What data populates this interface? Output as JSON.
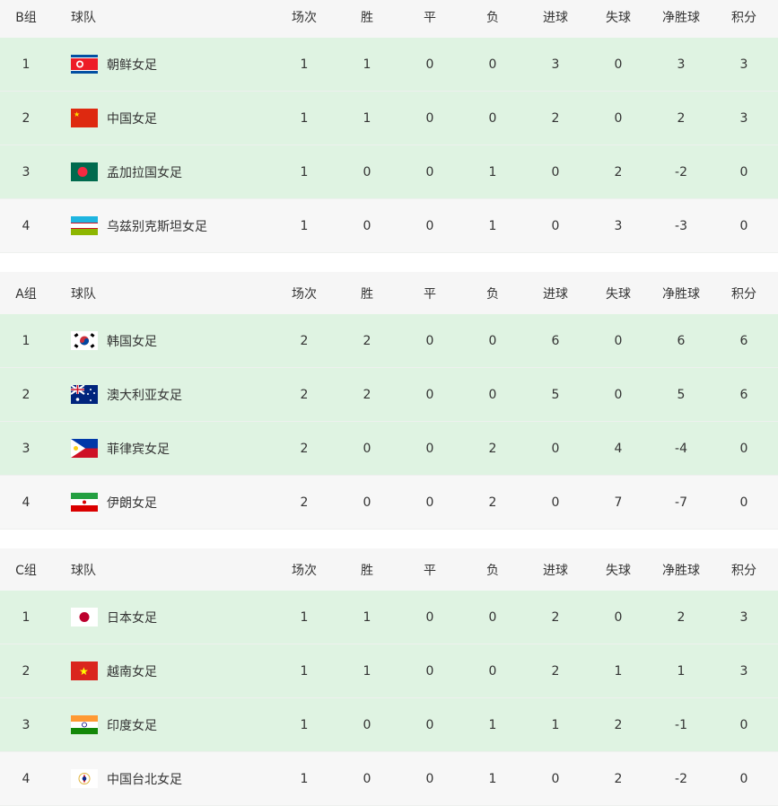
{
  "columns": {
    "team": "球队",
    "played": "场次",
    "won": "胜",
    "drawn": "平",
    "lost": "负",
    "gf": "进球",
    "ga": "失球",
    "gd": "净胜球",
    "pts": "积分"
  },
  "colors": {
    "top_row": "#dff3e2",
    "other_row": "#f7f7f7",
    "header": "#f6f6f6"
  },
  "groups": [
    {
      "label": "B组",
      "rows": [
        {
          "rank": "1",
          "flag": "north-korea",
          "team": "朝鲜女足",
          "played": "1",
          "won": "1",
          "drawn": "0",
          "lost": "0",
          "gf": "3",
          "ga": "0",
          "gd": "3",
          "pts": "3"
        },
        {
          "rank": "2",
          "flag": "china",
          "team": "中国女足",
          "played": "1",
          "won": "1",
          "drawn": "0",
          "lost": "0",
          "gf": "2",
          "ga": "0",
          "gd": "2",
          "pts": "3"
        },
        {
          "rank": "3",
          "flag": "bangladesh",
          "team": "孟加拉国女足",
          "played": "1",
          "won": "0",
          "drawn": "0",
          "lost": "1",
          "gf": "0",
          "ga": "2",
          "gd": "-2",
          "pts": "0"
        },
        {
          "rank": "4",
          "flag": "uzbekistan",
          "team": "乌兹别克斯坦女足",
          "played": "1",
          "won": "0",
          "drawn": "0",
          "lost": "1",
          "gf": "0",
          "ga": "3",
          "gd": "-3",
          "pts": "0"
        }
      ]
    },
    {
      "label": "A组",
      "rows": [
        {
          "rank": "1",
          "flag": "south-korea",
          "team": "韩国女足",
          "played": "2",
          "won": "2",
          "drawn": "0",
          "lost": "0",
          "gf": "6",
          "ga": "0",
          "gd": "6",
          "pts": "6"
        },
        {
          "rank": "2",
          "flag": "australia",
          "team": "澳大利亚女足",
          "played": "2",
          "won": "2",
          "drawn": "0",
          "lost": "0",
          "gf": "5",
          "ga": "0",
          "gd": "5",
          "pts": "6"
        },
        {
          "rank": "3",
          "flag": "philippines",
          "team": "菲律宾女足",
          "played": "2",
          "won": "0",
          "drawn": "0",
          "lost": "2",
          "gf": "0",
          "ga": "4",
          "gd": "-4",
          "pts": "0"
        },
        {
          "rank": "4",
          "flag": "iran",
          "team": "伊朗女足",
          "played": "2",
          "won": "0",
          "drawn": "0",
          "lost": "2",
          "gf": "0",
          "ga": "7",
          "gd": "-7",
          "pts": "0"
        }
      ]
    },
    {
      "label": "C组",
      "rows": [
        {
          "rank": "1",
          "flag": "japan",
          "team": "日本女足",
          "played": "1",
          "won": "1",
          "drawn": "0",
          "lost": "0",
          "gf": "2",
          "ga": "0",
          "gd": "2",
          "pts": "3"
        },
        {
          "rank": "2",
          "flag": "vietnam",
          "team": "越南女足",
          "played": "1",
          "won": "1",
          "drawn": "0",
          "lost": "0",
          "gf": "2",
          "ga": "1",
          "gd": "1",
          "pts": "3"
        },
        {
          "rank": "3",
          "flag": "india",
          "team": "印度女足",
          "played": "1",
          "won": "0",
          "drawn": "0",
          "lost": "1",
          "gf": "1",
          "ga": "2",
          "gd": "-1",
          "pts": "0"
        },
        {
          "rank": "4",
          "flag": "chinese-taipei",
          "team": "中国台北女足",
          "played": "1",
          "won": "0",
          "drawn": "0",
          "lost": "1",
          "gf": "0",
          "ga": "2",
          "gd": "-2",
          "pts": "0"
        }
      ]
    }
  ]
}
